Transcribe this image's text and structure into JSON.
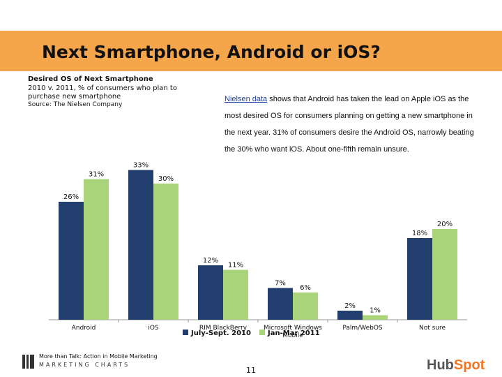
{
  "slide": {
    "title": "Next Smartphone, Android or iOS?",
    "page_number": "11"
  },
  "chart_header": {
    "title": "Desired OS of Next Smartphone",
    "subtitle": "2010 v. 2011, % of consumers who plan to purchase new smartphone",
    "source": "Source: The Nielsen Company"
  },
  "description": {
    "link_text": "Nielsen data",
    "body": " shows that Android has taken the lead on Apple iOS as the most desired OS for consumers planning on getting a new smartphone in the next year. 31% of consumers desire the Android OS, narrowly beating the 30% who want iOS. About one-fifth remain unsure."
  },
  "footer": {
    "tagline": "More than Talk: Action in Mobile Marketing",
    "brand": "MARKETING CHARTS",
    "logo_text_1": "Hub",
    "logo_text_2": "Spot"
  },
  "colors": {
    "series1": "#223e6e",
    "series2": "#a9d47a",
    "title_band": "#f5a54a"
  },
  "chart_data": {
    "type": "bar",
    "title": "Desired OS of Next Smartphone",
    "categories": [
      "Android",
      "iOS",
      "RIM BlackBerry",
      "Microsoft Windows Mobile",
      "Palm/WebOS",
      "Not sure"
    ],
    "series": [
      {
        "name": "July-Sept. 2010",
        "values": [
          26,
          33,
          12,
          7,
          2,
          18
        ],
        "labels": [
          "26%",
          "33%",
          "12%",
          "7%",
          "2%",
          "18%"
        ]
      },
      {
        "name": "Jan-Mar 2011",
        "values": [
          31,
          30,
          11,
          6,
          1,
          20
        ],
        "labels": [
          "31%",
          "30%",
          "11%",
          "6%",
          "1%",
          "20%"
        ]
      }
    ],
    "ylim": [
      0,
      40
    ],
    "grid": false,
    "legend": "bottom"
  }
}
